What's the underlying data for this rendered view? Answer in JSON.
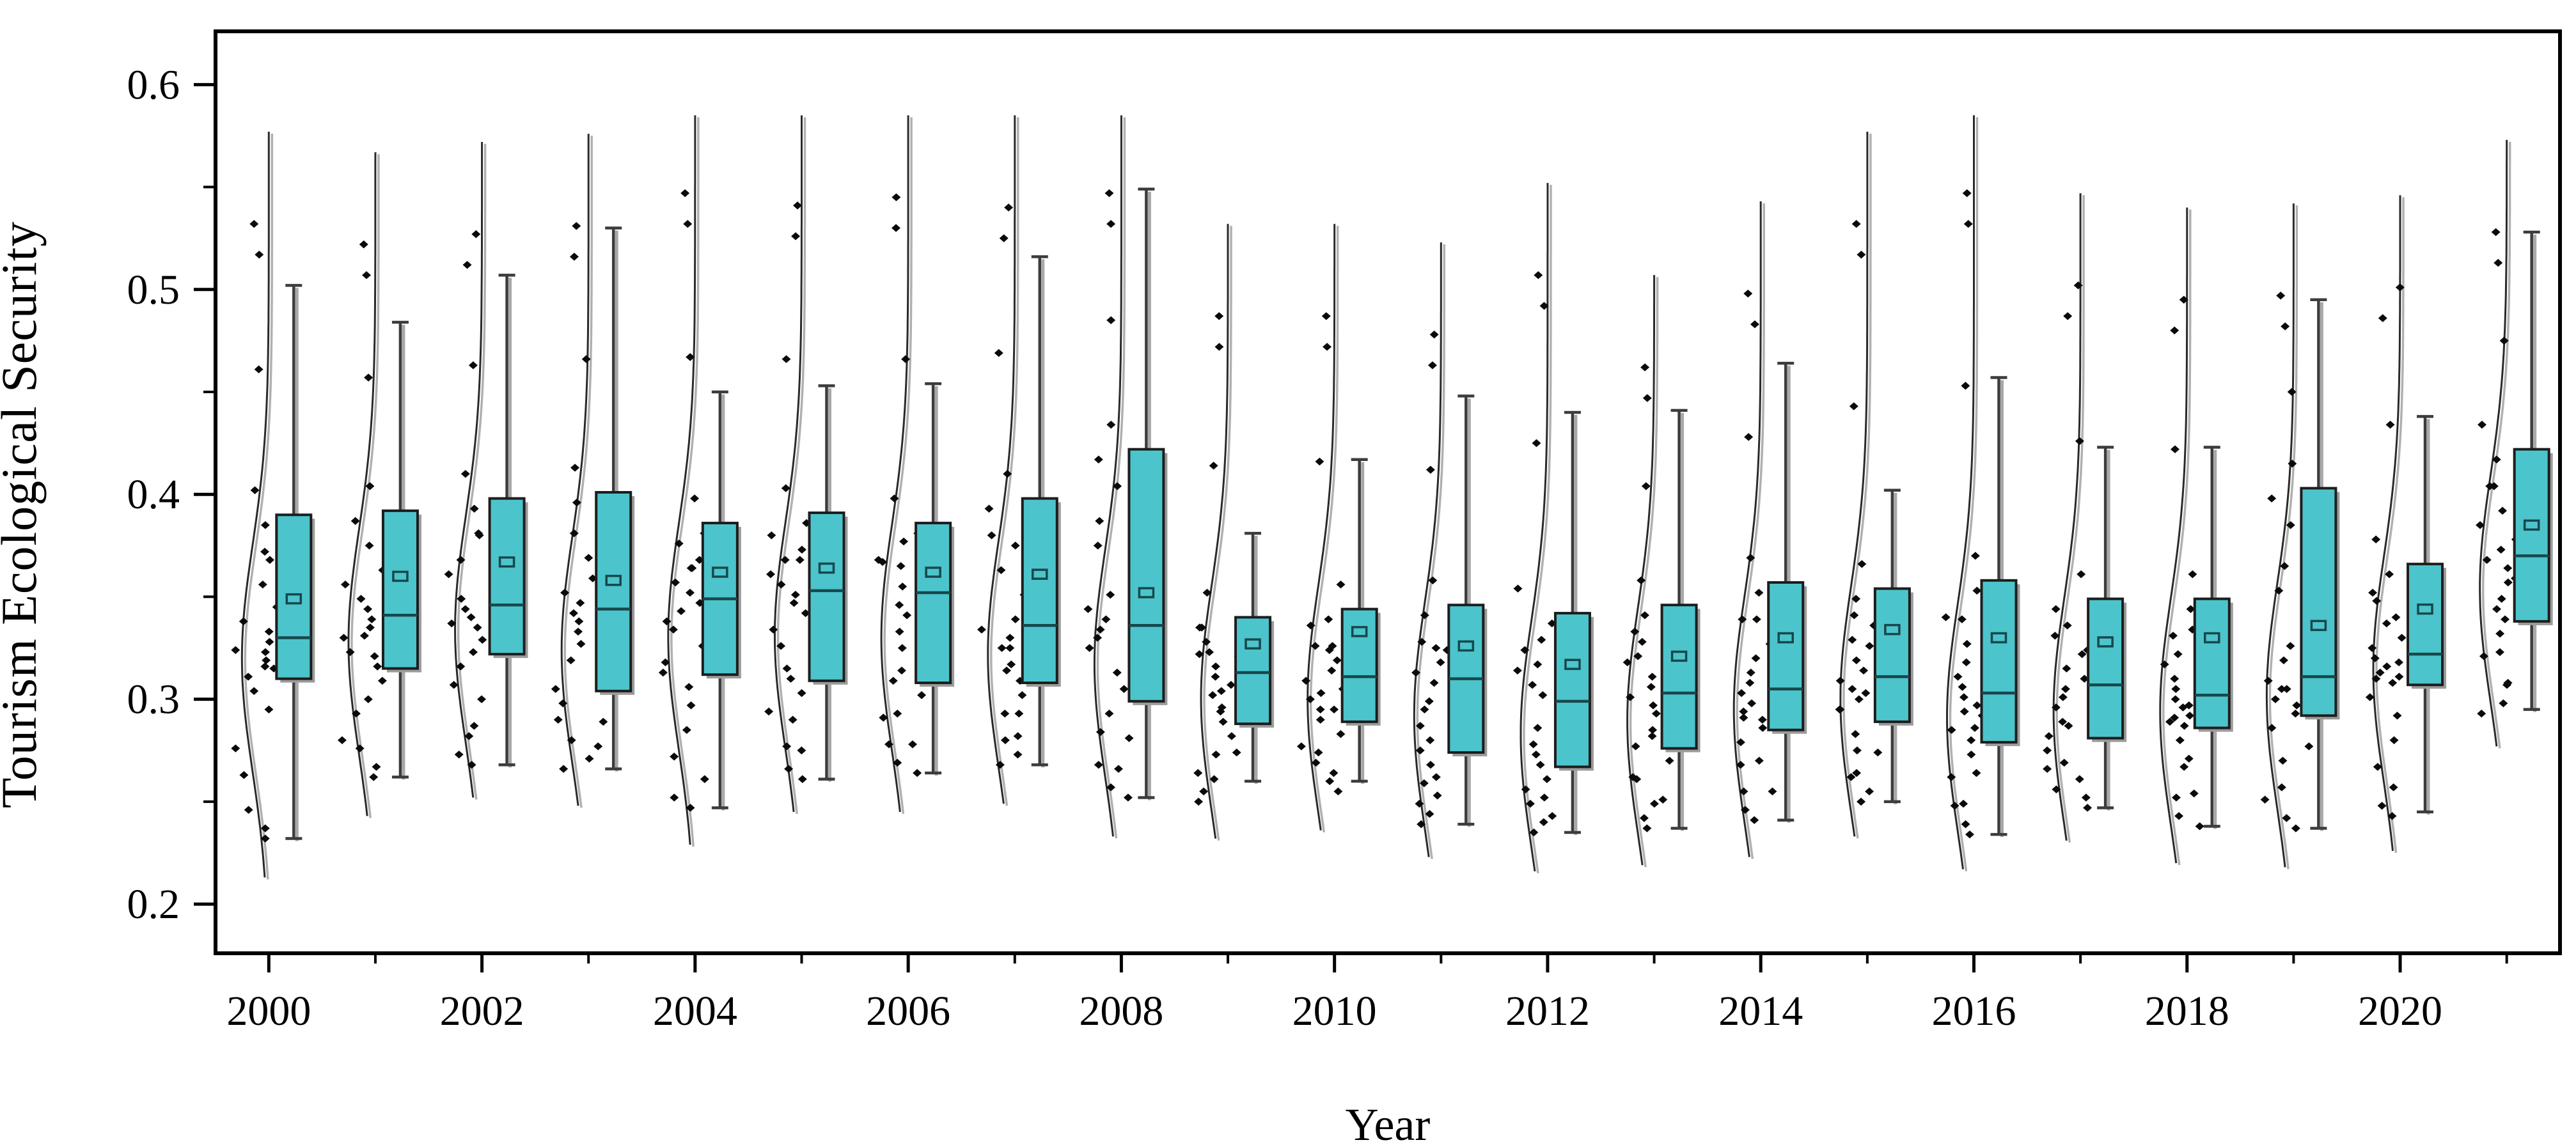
{
  "figure": {
    "background": "#ffffff",
    "colors": {
      "box_fill": "#4cc4cb",
      "box_border": "#1d1d1d",
      "median_line": "#17474c",
      "mean_marker_border": "#17474c",
      "whisker": "#3c3c3c",
      "whisker_shadow": "#a8a8a8",
      "violin_line": "#2a2a2a",
      "violin_shadow": "#b0b0b0",
      "scatter": "#0a0a0a",
      "axis": "#000000",
      "box_shadow": "#9b9b9b"
    },
    "y_axis": {
      "label": "Tourism Ecological Security",
      "major_ticks": [
        0.6,
        0.5,
        0.4,
        0.3,
        0.2
      ],
      "major_tick_labels": [
        "0.6",
        "0.5",
        "0.4",
        "0.3",
        "0.2"
      ],
      "minor_ticks": [
        0.55,
        0.45,
        0.35,
        0.25
      ],
      "range_top": 0.626,
      "range_bottom": 0.176
    },
    "x_axis": {
      "label": "Year",
      "labeled_years": [
        "2000",
        "2002",
        "2004",
        "2006",
        "2008",
        "2010",
        "2012",
        "2014",
        "2016",
        "2018",
        "2020"
      ],
      "minor_years": [
        2001,
        2003,
        2005,
        2007,
        2009,
        2011,
        2013,
        2015,
        2017,
        2019,
        2021
      ]
    }
  },
  "chart_data": {
    "type": "box",
    "subtype": "box-violin-scatter",
    "title": "",
    "xlabel": "Year",
    "ylabel": "Tourism Ecological Security",
    "ylim": [
      0.176,
      0.626
    ],
    "x_tick_labels": [
      "2000",
      "2002",
      "2004",
      "2006",
      "2008",
      "2010",
      "2012",
      "2014",
      "2016",
      "2018",
      "2020"
    ],
    "legend": [],
    "grid": false,
    "series": [
      {
        "year": 2000,
        "whisker_low": 0.232,
        "q1": 0.31,
        "median": 0.33,
        "mean": 0.349,
        "q3": 0.39,
        "whisker_high": 0.502,
        "points": [
          0.532,
          0.517,
          0.461,
          0.402,
          0.385,
          0.372,
          0.368,
          0.356,
          0.345,
          0.338,
          0.333,
          0.328,
          0.324,
          0.319,
          0.323,
          0.315,
          0.316,
          0.311,
          0.304,
          0.295,
          0.276,
          0.263,
          0.246,
          0.237,
          0.232
        ]
      },
      {
        "year": 2001,
        "whisker_low": 0.262,
        "q1": 0.315,
        "median": 0.341,
        "mean": 0.36,
        "q3": 0.392,
        "whisker_high": 0.484,
        "points": [
          0.522,
          0.507,
          0.457,
          0.404,
          0.387,
          0.374,
          0.375,
          0.363,
          0.356,
          0.349,
          0.344,
          0.339,
          0.335,
          0.33,
          0.331,
          0.323,
          0.321,
          0.316,
          0.309,
          0.3,
          0.293,
          0.28,
          0.276,
          0.267,
          0.262
        ]
      },
      {
        "year": 2002,
        "whisker_low": 0.268,
        "q1": 0.322,
        "median": 0.346,
        "mean": 0.367,
        "q3": 0.398,
        "whisker_high": 0.507,
        "points": [
          0.527,
          0.512,
          0.463,
          0.41,
          0.393,
          0.38,
          0.381,
          0.368,
          0.361,
          0.354,
          0.349,
          0.344,
          0.34,
          0.335,
          0.337,
          0.329,
          0.328,
          0.323,
          0.316,
          0.307,
          0.3,
          0.287,
          0.282,
          0.273,
          0.268
        ]
      },
      {
        "year": 2003,
        "whisker_low": 0.266,
        "q1": 0.304,
        "median": 0.344,
        "mean": 0.358,
        "q3": 0.401,
        "whisker_high": 0.53,
        "points": [
          0.531,
          0.516,
          0.466,
          0.413,
          0.396,
          0.383,
          0.381,
          0.369,
          0.359,
          0.352,
          0.347,
          0.342,
          0.338,
          0.333,
          0.327,
          0.319,
          0.31,
          0.305,
          0.298,
          0.289,
          0.29,
          0.277,
          0.28,
          0.271,
          0.266
        ]
      },
      {
        "year": 2004,
        "whisker_low": 0.247,
        "q1": 0.312,
        "median": 0.349,
        "mean": 0.362,
        "q3": 0.386,
        "whisker_high": 0.45,
        "points": [
          0.547,
          0.532,
          0.467,
          0.398,
          0.381,
          0.368,
          0.376,
          0.364,
          0.364,
          0.357,
          0.352,
          0.347,
          0.343,
          0.338,
          0.334,
          0.326,
          0.318,
          0.313,
          0.306,
          0.297,
          0.285,
          0.272,
          0.261,
          0.252,
          0.247
        ]
      },
      {
        "year": 2005,
        "whisker_low": 0.261,
        "q1": 0.309,
        "median": 0.353,
        "mean": 0.364,
        "q3": 0.391,
        "whisker_high": 0.453,
        "points": [
          0.541,
          0.526,
          0.466,
          0.403,
          0.386,
          0.373,
          0.38,
          0.368,
          0.368,
          0.361,
          0.356,
          0.351,
          0.347,
          0.342,
          0.334,
          0.326,
          0.315,
          0.31,
          0.303,
          0.294,
          0.29,
          0.277,
          0.275,
          0.266,
          0.261
        ]
      },
      {
        "year": 2006,
        "whisker_low": 0.264,
        "q1": 0.308,
        "median": 0.352,
        "mean": 0.362,
        "q3": 0.386,
        "whisker_high": 0.454,
        "points": [
          0.545,
          0.53,
          0.466,
          0.398,
          0.381,
          0.368,
          0.377,
          0.365,
          0.367,
          0.36,
          0.355,
          0.35,
          0.346,
          0.341,
          0.333,
          0.325,
          0.314,
          0.309,
          0.302,
          0.293,
          0.291,
          0.278,
          0.278,
          0.269,
          0.264
        ]
      },
      {
        "year": 2007,
        "whisker_low": 0.268,
        "q1": 0.308,
        "median": 0.336,
        "mean": 0.361,
        "q3": 0.398,
        "whisker_high": 0.516,
        "points": [
          0.54,
          0.525,
          0.469,
          0.41,
          0.393,
          0.38,
          0.375,
          0.363,
          0.351,
          0.344,
          0.339,
          0.334,
          0.33,
          0.325,
          0.325,
          0.317,
          0.314,
          0.309,
          0.302,
          0.293,
          0.293,
          0.28,
          0.282,
          0.273,
          0.268
        ]
      },
      {
        "year": 2008,
        "whisker_low": 0.252,
        "q1": 0.299,
        "median": 0.336,
        "mean": 0.352,
        "q3": 0.422,
        "whisker_high": 0.549,
        "points": [
          0.547,
          0.532,
          0.485,
          0.434,
          0.417,
          0.404,
          0.387,
          0.375,
          0.351,
          0.344,
          0.339,
          0.334,
          0.33,
          0.325,
          0.321,
          0.313,
          0.305,
          0.3,
          0.293,
          0.284,
          0.281,
          0.268,
          0.266,
          0.257,
          0.252
        ]
      },
      {
        "year": 2009,
        "whisker_low": 0.26,
        "q1": 0.288,
        "median": 0.313,
        "mean": 0.327,
        "q3": 0.34,
        "whisker_high": 0.381,
        "points": [
          0.487,
          0.472,
          0.414,
          0.352,
          0.335,
          0.322,
          0.335,
          0.323,
          0.328,
          0.321,
          0.316,
          0.311,
          0.307,
          0.302,
          0.304,
          0.296,
          0.294,
          0.289,
          0.282,
          0.273,
          0.274,
          0.261,
          0.264,
          0.255,
          0.25
        ]
      },
      {
        "year": 2010,
        "whisker_low": 0.26,
        "q1": 0.289,
        "median": 0.311,
        "mean": 0.333,
        "q3": 0.344,
        "whisker_high": 0.417,
        "points": [
          0.487,
          0.472,
          0.416,
          0.356,
          0.339,
          0.326,
          0.336,
          0.324,
          0.326,
          0.319,
          0.314,
          0.309,
          0.305,
          0.3,
          0.303,
          0.295,
          0.295,
          0.29,
          0.283,
          0.274,
          0.277,
          0.264,
          0.269,
          0.26,
          0.255
        ]
      },
      {
        "year": 2011,
        "whisker_low": 0.239,
        "q1": 0.274,
        "median": 0.31,
        "mean": 0.326,
        "q3": 0.346,
        "whisker_high": 0.448,
        "points": [
          0.478,
          0.463,
          0.412,
          0.358,
          0.341,
          0.328,
          0.336,
          0.324,
          0.325,
          0.318,
          0.313,
          0.308,
          0.304,
          0.299,
          0.295,
          0.287,
          0.28,
          0.275,
          0.268,
          0.259,
          0.262,
          0.249,
          0.253,
          0.244,
          0.239
        ]
      },
      {
        "year": 2012,
        "whisker_low": 0.235,
        "q1": 0.267,
        "median": 0.299,
        "mean": 0.317,
        "q3": 0.342,
        "whisker_high": 0.44,
        "points": [
          0.507,
          0.492,
          0.425,
          0.354,
          0.337,
          0.324,
          0.329,
          0.317,
          0.314,
          0.307,
          0.302,
          0.297,
          0.293,
          0.288,
          0.286,
          0.278,
          0.273,
          0.268,
          0.261,
          0.252,
          0.256,
          0.243,
          0.249,
          0.24,
          0.235
        ]
      },
      {
        "year": 2013,
        "whisker_low": 0.237,
        "q1": 0.276,
        "median": 0.303,
        "mean": 0.321,
        "q3": 0.346,
        "whisker_high": 0.441,
        "points": [
          0.462,
          0.447,
          0.404,
          0.358,
          0.341,
          0.328,
          0.333,
          0.321,
          0.318,
          0.311,
          0.306,
          0.301,
          0.297,
          0.292,
          0.293,
          0.285,
          0.282,
          0.277,
          0.27,
          0.261,
          0.262,
          0.249,
          0.251,
          0.242,
          0.237
        ]
      },
      {
        "year": 2014,
        "whisker_low": 0.241,
        "q1": 0.285,
        "median": 0.305,
        "mean": 0.33,
        "q3": 0.357,
        "whisker_high": 0.464,
        "points": [
          0.498,
          0.483,
          0.428,
          0.369,
          0.352,
          0.339,
          0.339,
          0.327,
          0.32,
          0.313,
          0.308,
          0.303,
          0.299,
          0.294,
          0.298,
          0.29,
          0.291,
          0.286,
          0.279,
          0.27,
          0.268,
          0.255,
          0.255,
          0.246,
          0.241
        ]
      },
      {
        "year": 2015,
        "whisker_low": 0.25,
        "q1": 0.289,
        "median": 0.311,
        "mean": 0.334,
        "q3": 0.354,
        "whisker_high": 0.402,
        "points": [
          0.532,
          0.517,
          0.443,
          0.366,
          0.349,
          0.336,
          0.341,
          0.329,
          0.326,
          0.319,
          0.314,
          0.309,
          0.305,
          0.3,
          0.303,
          0.295,
          0.295,
          0.29,
          0.283,
          0.274,
          0.275,
          0.262,
          0.264,
          0.255,
          0.25
        ]
      },
      {
        "year": 2016,
        "whisker_low": 0.234,
        "q1": 0.279,
        "median": 0.303,
        "mean": 0.33,
        "q3": 0.358,
        "whisker_high": 0.457,
        "points": [
          0.547,
          0.532,
          0.453,
          0.37,
          0.353,
          0.34,
          0.339,
          0.327,
          0.318,
          0.311,
          0.306,
          0.301,
          0.297,
          0.292,
          0.294,
          0.286,
          0.285,
          0.28,
          0.273,
          0.264,
          0.262,
          0.249,
          0.248,
          0.239,
          0.234
        ]
      },
      {
        "year": 2017,
        "whisker_low": 0.247,
        "q1": 0.281,
        "median": 0.307,
        "mean": 0.328,
        "q3": 0.349,
        "whisker_high": 0.423,
        "points": [
          0.502,
          0.487,
          0.426,
          0.361,
          0.344,
          0.331,
          0.336,
          0.324,
          0.322,
          0.315,
          0.31,
          0.305,
          0.301,
          0.296,
          0.297,
          0.289,
          0.287,
          0.282,
          0.275,
          0.266,
          0.269,
          0.256,
          0.261,
          0.252,
          0.247
        ]
      },
      {
        "year": 2018,
        "whisker_low": 0.238,
        "q1": 0.286,
        "median": 0.302,
        "mean": 0.33,
        "q3": 0.349,
        "whisker_high": 0.423,
        "points": [
          0.495,
          0.48,
          0.422,
          0.361,
          0.344,
          0.331,
          0.334,
          0.322,
          0.317,
          0.31,
          0.305,
          0.3,
          0.296,
          0.291,
          0.297,
          0.289,
          0.292,
          0.287,
          0.28,
          0.271,
          0.267,
          0.254,
          0.252,
          0.243,
          0.238
        ]
      },
      {
        "year": 2019,
        "whisker_low": 0.237,
        "q1": 0.292,
        "median": 0.311,
        "mean": 0.336,
        "q3": 0.403,
        "whisker_high": 0.495,
        "points": [
          0.497,
          0.482,
          0.45,
          0.415,
          0.398,
          0.385,
          0.365,
          0.353,
          0.326,
          0.319,
          0.314,
          0.309,
          0.305,
          0.3,
          0.305,
          0.297,
          0.298,
          0.293,
          0.286,
          0.277,
          0.27,
          0.257,
          0.251,
          0.242,
          0.237
        ]
      },
      {
        "year": 2020,
        "whisker_low": 0.245,
        "q1": 0.307,
        "median": 0.322,
        "mean": 0.344,
        "q3": 0.366,
        "whisker_high": 0.438,
        "points": [
          0.501,
          0.486,
          0.434,
          0.378,
          0.361,
          0.348,
          0.352,
          0.34,
          0.337,
          0.33,
          0.325,
          0.32,
          0.316,
          0.311,
          0.318,
          0.31,
          0.313,
          0.308,
          0.301,
          0.292,
          0.28,
          0.267,
          0.257,
          0.248,
          0.243
        ]
      },
      {
        "year": 2021,
        "whisker_low": 0.295,
        "q1": 0.338,
        "median": 0.37,
        "mean": 0.385,
        "q3": 0.422,
        "whisker_high": 0.528,
        "points": [
          0.528,
          0.513,
          0.475,
          0.434,
          0.417,
          0.404,
          0.404,
          0.392,
          0.385,
          0.378,
          0.373,
          0.368,
          0.364,
          0.359,
          0.357,
          0.349,
          0.344,
          0.339,
          0.332,
          0.323,
          0.321,
          0.308,
          0.307,
          0.298,
          0.293
        ]
      }
    ]
  }
}
